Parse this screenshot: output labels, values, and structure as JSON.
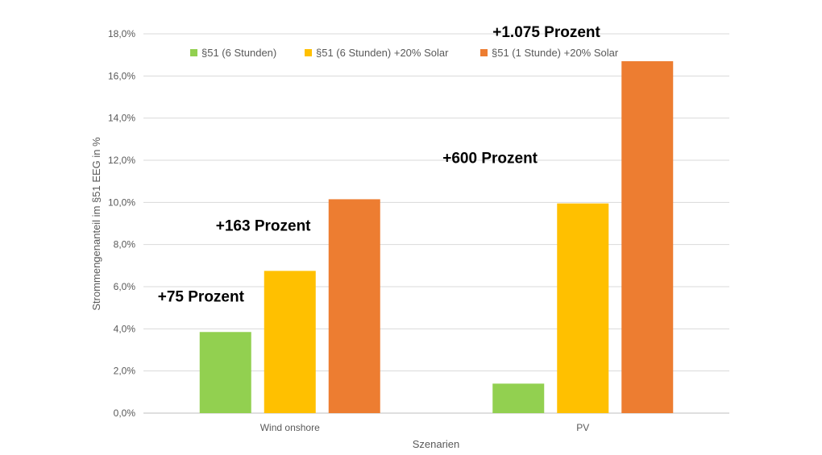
{
  "chart_data": {
    "type": "bar",
    "title": "",
    "xlabel": "Szenarien",
    "ylabel": "Strommengenanteil im §51 EEG in %",
    "categories": [
      "Wind onshore",
      "PV"
    ],
    "series": [
      {
        "name": "§51 (6 Stunden)",
        "values": [
          3.85,
          1.4
        ],
        "color": "#92d050"
      },
      {
        "name": "§51 (6 Stunden) +20% Solar",
        "values": [
          6.75,
          9.95
        ],
        "color": "#ffc000"
      },
      {
        "name": "§51 (1 Stunde) +20% Solar",
        "values": [
          10.15,
          16.7
        ],
        "color": "#ed7d31"
      }
    ],
    "ylim": [
      0,
      18
    ],
    "yticks": [
      "0,0%",
      "2,0%",
      "4,0%",
      "6,0%",
      "8,0%",
      "10,0%",
      "12,0%",
      "14,0%",
      "16,0%",
      "18,0%"
    ],
    "grid": true,
    "legend_position": "top",
    "annotations": [
      {
        "text": "+75 Prozent",
        "category": "Wind onshore",
        "series": "§51 (6 Stunden)"
      },
      {
        "text": "+163 Prozent",
        "category": "Wind onshore",
        "series": "§51 (6 Stunden) +20% Solar"
      },
      {
        "text": "+600 Prozent",
        "category": "PV",
        "series": "§51 (6 Stunden) +20% Solar"
      },
      {
        "text": "+1.075 Prozent",
        "category": "PV",
        "series": "§51 (1 Stunde) +20% Solar"
      }
    ]
  }
}
